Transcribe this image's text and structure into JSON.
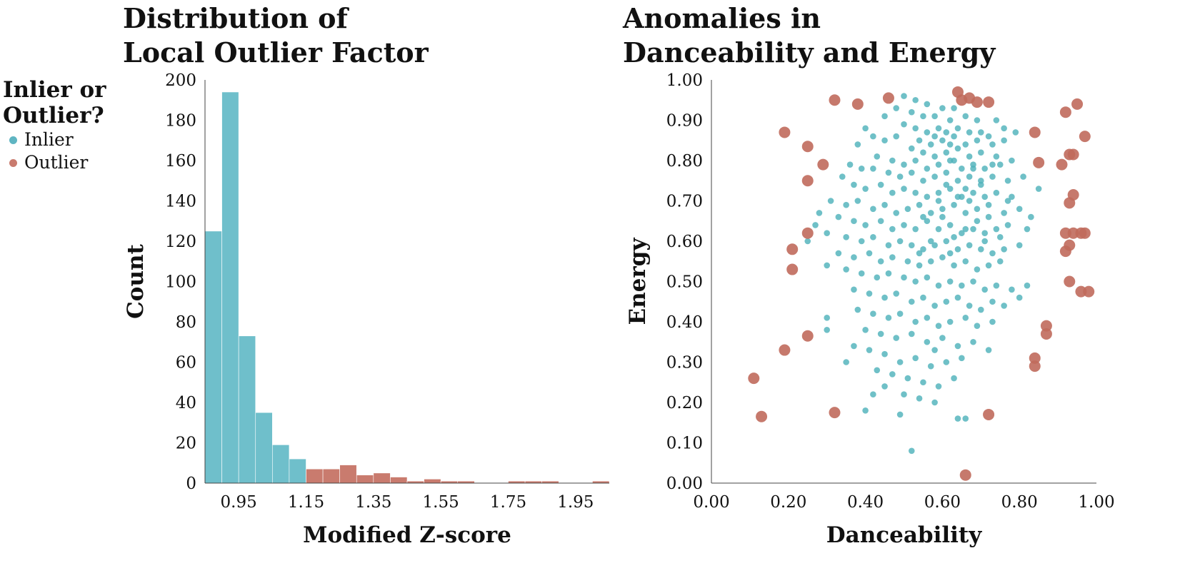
{
  "colors": {
    "inlier": "#6fbfcb",
    "outlier": "#c97b6e",
    "inlier_point": "#4fb2bb",
    "outlier_point": "#c06a5c",
    "axis": "#444444"
  },
  "legend": {
    "title_line1": "Inlier or",
    "title_line2": "Outlier?",
    "items": [
      {
        "label": "Inlier",
        "color": "#5fb5c2"
      },
      {
        "label": "Outlier",
        "color": "#c97b6e"
      }
    ]
  },
  "chart_data": [
    {
      "type": "bar",
      "title_line1": "Distribution of",
      "title_line2": "Local Outlier Factor",
      "xlabel": "Modified Z-score",
      "ylabel": "Count",
      "ylim": [
        0,
        200
      ],
      "xlim": [
        0.85,
        2.05
      ],
      "yticks": [
        0,
        20,
        40,
        60,
        80,
        100,
        120,
        140,
        160,
        180,
        200
      ],
      "xticks": [
        "0.95",
        "1.15",
        "1.35",
        "1.55",
        "1.75",
        "1.95"
      ],
      "bin_width": 0.05,
      "bins": [
        {
          "start": 0.85,
          "count": 125,
          "group": "Inlier"
        },
        {
          "start": 0.9,
          "count": 194,
          "group": "Inlier"
        },
        {
          "start": 0.95,
          "count": 73,
          "group": "Inlier"
        },
        {
          "start": 1.0,
          "count": 35,
          "group": "Inlier"
        },
        {
          "start": 1.05,
          "count": 19,
          "group": "Inlier"
        },
        {
          "start": 1.1,
          "count": 12,
          "group": "Inlier"
        },
        {
          "start": 1.15,
          "count": 7,
          "group": "Outlier"
        },
        {
          "start": 1.2,
          "count": 7,
          "group": "Outlier"
        },
        {
          "start": 1.25,
          "count": 9,
          "group": "Outlier"
        },
        {
          "start": 1.3,
          "count": 4,
          "group": "Outlier"
        },
        {
          "start": 1.35,
          "count": 5,
          "group": "Outlier"
        },
        {
          "start": 1.4,
          "count": 3,
          "group": "Outlier"
        },
        {
          "start": 1.45,
          "count": 1,
          "group": "Outlier"
        },
        {
          "start": 1.5,
          "count": 2,
          "group": "Outlier"
        },
        {
          "start": 1.55,
          "count": 1,
          "group": "Outlier"
        },
        {
          "start": 1.6,
          "count": 1,
          "group": "Outlier"
        },
        {
          "start": 1.65,
          "count": 0,
          "group": "Outlier"
        },
        {
          "start": 1.7,
          "count": 0,
          "group": "Outlier"
        },
        {
          "start": 1.75,
          "count": 1,
          "group": "Outlier"
        },
        {
          "start": 1.8,
          "count": 1,
          "group": "Outlier"
        },
        {
          "start": 1.85,
          "count": 1,
          "group": "Outlier"
        },
        {
          "start": 1.9,
          "count": 0,
          "group": "Outlier"
        },
        {
          "start": 1.95,
          "count": 0,
          "group": "Outlier"
        },
        {
          "start": 2.0,
          "count": 1,
          "group": "Outlier"
        }
      ]
    },
    {
      "type": "scatter",
      "title_line1": "Anomalies in",
      "title_line2": "Danceability and Energy",
      "xlabel": "Danceability",
      "ylabel": "Energy",
      "xlim": [
        0,
        1
      ],
      "ylim": [
        0,
        1
      ],
      "xticks": [
        "0.00",
        "0.20",
        "0.40",
        "0.60",
        "0.80",
        "1.00"
      ],
      "yticks": [
        "0.00",
        "0.10",
        "0.20",
        "0.30",
        "0.40",
        "0.50",
        "0.60",
        "0.70",
        "0.80",
        "0.90",
        "1.00"
      ],
      "outliers": [
        [
          0.64,
          0.97
        ],
        [
          0.67,
          0.955
        ],
        [
          0.72,
          0.945
        ],
        [
          0.69,
          0.945
        ],
        [
          0.65,
          0.95
        ],
        [
          0.46,
          0.955
        ],
        [
          0.32,
          0.95
        ],
        [
          0.38,
          0.94
        ],
        [
          0.19,
          0.87
        ],
        [
          0.25,
          0.835
        ],
        [
          0.29,
          0.79
        ],
        [
          0.25,
          0.75
        ],
        [
          0.25,
          0.62
        ],
        [
          0.21,
          0.58
        ],
        [
          0.21,
          0.53
        ],
        [
          0.25,
          0.365
        ],
        [
          0.19,
          0.33
        ],
        [
          0.11,
          0.26
        ],
        [
          0.13,
          0.165
        ],
        [
          0.32,
          0.175
        ],
        [
          0.66,
          0.02
        ],
        [
          0.72,
          0.17
        ],
        [
          0.92,
          0.92
        ],
        [
          0.95,
          0.94
        ],
        [
          0.97,
          0.86
        ],
        [
          0.84,
          0.87
        ],
        [
          0.93,
          0.815
        ],
        [
          0.94,
          0.815
        ],
        [
          0.91,
          0.79
        ],
        [
          0.85,
          0.795
        ],
        [
          0.94,
          0.715
        ],
        [
          0.93,
          0.695
        ],
        [
          0.92,
          0.62
        ],
        [
          0.94,
          0.62
        ],
        [
          0.96,
          0.62
        ],
        [
          0.97,
          0.62
        ],
        [
          0.92,
          0.575
        ],
        [
          0.93,
          0.59
        ],
        [
          0.93,
          0.5
        ],
        [
          0.96,
          0.475
        ],
        [
          0.98,
          0.475
        ],
        [
          0.87,
          0.39
        ],
        [
          0.87,
          0.37
        ],
        [
          0.84,
          0.31
        ],
        [
          0.84,
          0.29
        ]
      ],
      "inliers": [
        [
          0.5,
          0.96
        ],
        [
          0.53,
          0.95
        ],
        [
          0.56,
          0.94
        ],
        [
          0.48,
          0.93
        ],
        [
          0.6,
          0.93
        ],
        [
          0.63,
          0.93
        ],
        [
          0.45,
          0.91
        ],
        [
          0.52,
          0.92
        ],
        [
          0.55,
          0.91
        ],
        [
          0.58,
          0.91
        ],
        [
          0.62,
          0.9
        ],
        [
          0.66,
          0.91
        ],
        [
          0.69,
          0.9
        ],
        [
          0.74,
          0.9
        ],
        [
          0.76,
          0.88
        ],
        [
          0.5,
          0.89
        ],
        [
          0.53,
          0.88
        ],
        [
          0.56,
          0.87
        ],
        [
          0.59,
          0.88
        ],
        [
          0.61,
          0.87
        ],
        [
          0.64,
          0.88
        ],
        [
          0.67,
          0.87
        ],
        [
          0.7,
          0.87
        ],
        [
          0.72,
          0.86
        ],
        [
          0.79,
          0.87
        ],
        [
          0.4,
          0.88
        ],
        [
          0.42,
          0.86
        ],
        [
          0.45,
          0.85
        ],
        [
          0.48,
          0.86
        ],
        [
          0.38,
          0.84
        ],
        [
          0.54,
          0.85
        ],
        [
          0.57,
          0.84
        ],
        [
          0.6,
          0.85
        ],
        [
          0.63,
          0.86
        ],
        [
          0.66,
          0.84
        ],
        [
          0.69,
          0.85
        ],
        [
          0.73,
          0.84
        ],
        [
          0.76,
          0.85
        ],
        [
          0.52,
          0.83
        ],
        [
          0.55,
          0.82
        ],
        [
          0.58,
          0.81
        ],
        [
          0.61,
          0.82
        ],
        [
          0.64,
          0.83
        ],
        [
          0.67,
          0.81
        ],
        [
          0.7,
          0.82
        ],
        [
          0.74,
          0.81
        ],
        [
          0.78,
          0.8
        ],
        [
          0.43,
          0.81
        ],
        [
          0.47,
          0.8
        ],
        [
          0.5,
          0.79
        ],
        [
          0.53,
          0.8
        ],
        [
          0.56,
          0.78
        ],
        [
          0.59,
          0.79
        ],
        [
          0.62,
          0.8
        ],
        [
          0.65,
          0.78
        ],
        [
          0.68,
          0.79
        ],
        [
          0.71,
          0.78
        ],
        [
          0.75,
          0.79
        ],
        [
          0.36,
          0.79
        ],
        [
          0.39,
          0.78
        ],
        [
          0.42,
          0.78
        ],
        [
          0.46,
          0.77
        ],
        [
          0.49,
          0.76
        ],
        [
          0.52,
          0.77
        ],
        [
          0.55,
          0.75
        ],
        [
          0.58,
          0.76
        ],
        [
          0.61,
          0.77
        ],
        [
          0.64,
          0.75
        ],
        [
          0.67,
          0.76
        ],
        [
          0.7,
          0.75
        ],
        [
          0.73,
          0.76
        ],
        [
          0.77,
          0.75
        ],
        [
          0.81,
          0.76
        ],
        [
          0.34,
          0.76
        ],
        [
          0.37,
          0.74
        ],
        [
          0.4,
          0.73
        ],
        [
          0.44,
          0.74
        ],
        [
          0.47,
          0.72
        ],
        [
          0.5,
          0.73
        ],
        [
          0.53,
          0.72
        ],
        [
          0.56,
          0.71
        ],
        [
          0.59,
          0.72
        ],
        [
          0.62,
          0.73
        ],
        [
          0.65,
          0.71
        ],
        [
          0.68,
          0.72
        ],
        [
          0.71,
          0.71
        ],
        [
          0.74,
          0.72
        ],
        [
          0.78,
          0.71
        ],
        [
          0.85,
          0.73
        ],
        [
          0.31,
          0.7
        ],
        [
          0.35,
          0.69
        ],
        [
          0.38,
          0.7
        ],
        [
          0.42,
          0.68
        ],
        [
          0.45,
          0.69
        ],
        [
          0.48,
          0.67
        ],
        [
          0.51,
          0.68
        ],
        [
          0.54,
          0.69
        ],
        [
          0.57,
          0.67
        ],
        [
          0.6,
          0.68
        ],
        [
          0.63,
          0.69
        ],
        [
          0.66,
          0.67
        ],
        [
          0.69,
          0.68
        ],
        [
          0.72,
          0.66
        ],
        [
          0.76,
          0.67
        ],
        [
          0.8,
          0.68
        ],
        [
          0.83,
          0.66
        ],
        [
          0.28,
          0.67
        ],
        [
          0.33,
          0.66
        ],
        [
          0.37,
          0.65
        ],
        [
          0.4,
          0.64
        ],
        [
          0.44,
          0.65
        ],
        [
          0.47,
          0.63
        ],
        [
          0.5,
          0.64
        ],
        [
          0.53,
          0.63
        ],
        [
          0.56,
          0.65
        ],
        [
          0.59,
          0.63
        ],
        [
          0.62,
          0.64
        ],
        [
          0.65,
          0.62
        ],
        [
          0.68,
          0.63
        ],
        [
          0.71,
          0.62
        ],
        [
          0.74,
          0.63
        ],
        [
          0.77,
          0.64
        ],
        [
          0.82,
          0.63
        ],
        [
          0.27,
          0.64
        ],
        [
          0.3,
          0.62
        ],
        [
          0.35,
          0.61
        ],
        [
          0.39,
          0.6
        ],
        [
          0.42,
          0.61
        ],
        [
          0.46,
          0.59
        ],
        [
          0.49,
          0.6
        ],
        [
          0.52,
          0.59
        ],
        [
          0.55,
          0.58
        ],
        [
          0.58,
          0.59
        ],
        [
          0.61,
          0.6
        ],
        [
          0.64,
          0.58
        ],
        [
          0.67,
          0.59
        ],
        [
          0.7,
          0.58
        ],
        [
          0.73,
          0.57
        ],
        [
          0.76,
          0.58
        ],
        [
          0.8,
          0.59
        ],
        [
          0.25,
          0.6
        ],
        [
          0.33,
          0.57
        ],
        [
          0.37,
          0.56
        ],
        [
          0.41,
          0.57
        ],
        [
          0.44,
          0.55
        ],
        [
          0.47,
          0.56
        ],
        [
          0.51,
          0.55
        ],
        [
          0.54,
          0.54
        ],
        [
          0.57,
          0.55
        ],
        [
          0.6,
          0.56
        ],
        [
          0.63,
          0.54
        ],
        [
          0.66,
          0.55
        ],
        [
          0.69,
          0.53
        ],
        [
          0.72,
          0.54
        ],
        [
          0.75,
          0.55
        ],
        [
          0.3,
          0.54
        ],
        [
          0.35,
          0.53
        ],
        [
          0.39,
          0.52
        ],
        [
          0.43,
          0.51
        ],
        [
          0.46,
          0.52
        ],
        [
          0.5,
          0.51
        ],
        [
          0.53,
          0.5
        ],
        [
          0.56,
          0.51
        ],
        [
          0.59,
          0.49
        ],
        [
          0.62,
          0.5
        ],
        [
          0.65,
          0.49
        ],
        [
          0.68,
          0.5
        ],
        [
          0.71,
          0.48
        ],
        [
          0.74,
          0.49
        ],
        [
          0.78,
          0.48
        ],
        [
          0.82,
          0.49
        ],
        [
          0.37,
          0.48
        ],
        [
          0.41,
          0.47
        ],
        [
          0.45,
          0.46
        ],
        [
          0.48,
          0.47
        ],
        [
          0.52,
          0.45
        ],
        [
          0.55,
          0.46
        ],
        [
          0.58,
          0.44
        ],
        [
          0.61,
          0.45
        ],
        [
          0.64,
          0.46
        ],
        [
          0.67,
          0.44
        ],
        [
          0.7,
          0.43
        ],
        [
          0.73,
          0.45
        ],
        [
          0.76,
          0.44
        ],
        [
          0.8,
          0.46
        ],
        [
          0.38,
          0.43
        ],
        [
          0.42,
          0.42
        ],
        [
          0.46,
          0.41
        ],
        [
          0.49,
          0.42
        ],
        [
          0.53,
          0.4
        ],
        [
          0.56,
          0.41
        ],
        [
          0.59,
          0.39
        ],
        [
          0.62,
          0.4
        ],
        [
          0.66,
          0.41
        ],
        [
          0.69,
          0.39
        ],
        [
          0.73,
          0.4
        ],
        [
          0.3,
          0.41
        ],
        [
          0.3,
          0.38
        ],
        [
          0.4,
          0.38
        ],
        [
          0.44,
          0.37
        ],
        [
          0.48,
          0.36
        ],
        [
          0.52,
          0.37
        ],
        [
          0.56,
          0.35
        ],
        [
          0.6,
          0.36
        ],
        [
          0.64,
          0.34
        ],
        [
          0.68,
          0.35
        ],
        [
          0.72,
          0.33
        ],
        [
          0.37,
          0.34
        ],
        [
          0.41,
          0.33
        ],
        [
          0.45,
          0.32
        ],
        [
          0.49,
          0.3
        ],
        [
          0.53,
          0.31
        ],
        [
          0.57,
          0.29
        ],
        [
          0.61,
          0.3
        ],
        [
          0.65,
          0.31
        ],
        [
          0.35,
          0.3
        ],
        [
          0.43,
          0.28
        ],
        [
          0.47,
          0.27
        ],
        [
          0.51,
          0.26
        ],
        [
          0.55,
          0.25
        ],
        [
          0.59,
          0.24
        ],
        [
          0.63,
          0.26
        ],
        [
          0.45,
          0.24
        ],
        [
          0.5,
          0.22
        ],
        [
          0.54,
          0.21
        ],
        [
          0.58,
          0.2
        ],
        [
          0.42,
          0.22
        ],
        [
          0.49,
          0.17
        ],
        [
          0.4,
          0.18
        ],
        [
          0.64,
          0.16
        ],
        [
          0.66,
          0.16
        ],
        [
          0.52,
          0.08
        ],
        [
          0.58,
          0.33
        ],
        [
          0.62,
          0.57
        ],
        [
          0.59,
          0.7
        ],
        [
          0.61,
          0.74
        ],
        [
          0.57,
          0.6
        ],
        [
          0.69,
          0.65
        ],
        [
          0.75,
          0.61
        ],
        [
          0.63,
          0.8
        ],
        [
          0.66,
          0.73
        ],
        [
          0.55,
          0.66
        ],
        [
          0.72,
          0.69
        ],
        [
          0.67,
          0.7
        ],
        [
          0.6,
          0.66
        ],
        [
          0.64,
          0.71
        ],
        [
          0.7,
          0.74
        ],
        [
          0.58,
          0.86
        ],
        [
          0.62,
          0.84
        ],
        [
          0.68,
          0.78
        ],
        [
          0.73,
          0.79
        ],
        [
          0.77,
          0.7
        ],
        [
          0.63,
          0.61
        ],
        [
          0.71,
          0.6
        ],
        [
          0.66,
          0.63
        ],
        [
          0.54,
          0.57
        ]
      ]
    }
  ]
}
